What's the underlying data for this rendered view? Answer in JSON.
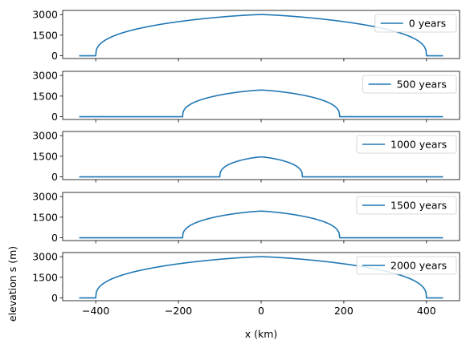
{
  "chart_data": {
    "type": "line",
    "xlabel": "x  (km)",
    "ylabel": "elevation s  (m)",
    "xlim": [
      -480,
      480
    ],
    "ylim": [
      -200,
      3300
    ],
    "x_ticks": [
      -400,
      -200,
      0,
      200,
      400
    ],
    "x_tick_labels": [
      "−400",
      "−200",
      "0",
      "200",
      "400"
    ],
    "y_ticks": [
      0,
      1500,
      3000
    ],
    "y_tick_labels": [
      "0",
      "1500",
      "3000"
    ],
    "line_color": "#1f77b4",
    "legend_position": "top-right",
    "panels": [
      {
        "series": [
          {
            "name": "0 years",
            "domain": [
              -440,
              440
            ],
            "half_width": 400,
            "peak": 3000
          }
        ]
      },
      {
        "series": [
          {
            "name": "500 years",
            "domain": [
              -440,
              440
            ],
            "half_width": 190,
            "peak": 1940
          }
        ]
      },
      {
        "series": [
          {
            "name": "1000 years",
            "domain": [
              -440,
              440
            ],
            "half_width": 100,
            "peak": 1450
          }
        ]
      },
      {
        "series": [
          {
            "name": "1500 years",
            "domain": [
              -440,
              440
            ],
            "half_width": 190,
            "peak": 1940
          }
        ]
      },
      {
        "series": [
          {
            "name": "2000 years",
            "domain": [
              -440,
              440
            ],
            "half_width": 400,
            "peak": 3000
          }
        ]
      }
    ]
  }
}
